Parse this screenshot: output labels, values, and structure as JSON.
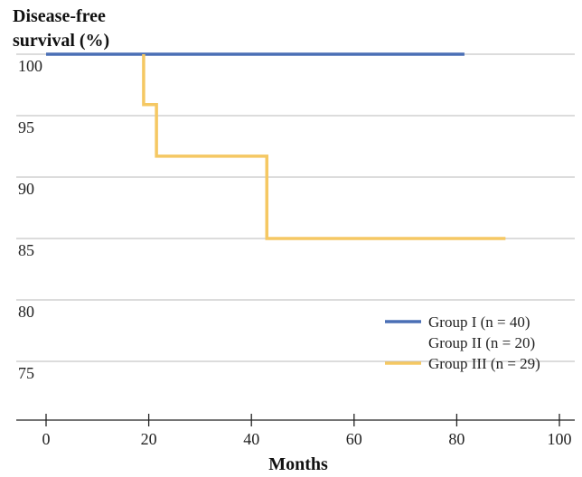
{
  "chart_data": {
    "type": "line",
    "step": true,
    "ylabel_lines": [
      "Disease-free",
      "survival (%)"
    ],
    "xlabel": "Months",
    "xlim": [
      0,
      100
    ],
    "ylim": [
      73,
      100
    ],
    "x_ticks": [
      0,
      20,
      40,
      60,
      80,
      100
    ],
    "y_ticks": [
      100,
      95,
      90,
      85,
      80,
      75
    ],
    "grid": "horizontal",
    "legend_position": "bottom-right",
    "series": [
      {
        "name": "Group I (n = 40)",
        "color": "#4a6fb5",
        "x": [
          0,
          81.5
        ],
        "y": [
          100,
          100
        ]
      },
      {
        "name": "Group II (n = 20)",
        "color": null,
        "x": [],
        "y": []
      },
      {
        "name": "Group III (n = 29)",
        "color": "#f5c863",
        "x": [
          19,
          19,
          21.5,
          21.5,
          43,
          43,
          89.5
        ],
        "y": [
          100,
          95.9,
          95.9,
          91.7,
          91.7,
          85,
          85
        ]
      }
    ]
  }
}
